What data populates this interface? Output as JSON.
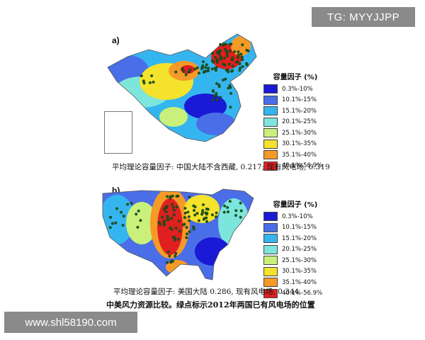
{
  "watermarks": {
    "top_right": "TG: MYYJJPP",
    "bottom_left": "www.shl58190.com"
  },
  "panel_a": {
    "label": "a)",
    "legend_title": "容量因子 (%)",
    "caption": "平均理论容量因子: 中国大陆不含西藏, 0.217; 现有风电场, 0.319"
  },
  "panel_b": {
    "label": "b)",
    "legend_title": "容量因子 (%)",
    "caption": "平均理论容量因子: 美国大陆 0.286, 现有风电场, 0.344"
  },
  "footer_caption": "中美风力资源比较。绿点标示2012年两国已有风电场的位置",
  "legend_items": [
    {
      "label": "0.3%-10%",
      "color": "#1a1ad6"
    },
    {
      "label": "10.1%-15%",
      "color": "#4a6ee8"
    },
    {
      "label": "15.1%-20%",
      "color": "#35b5ef"
    },
    {
      "label": "20.1%-25%",
      "color": "#7de6dc"
    },
    {
      "label": "25.1%-30%",
      "color": "#c9f07a"
    },
    {
      "label": "30.1%-35%",
      "color": "#f4e22c"
    },
    {
      "label": "35.1%-40%",
      "color": "#f59a27"
    },
    {
      "label": "40.1%-56.9%",
      "color": "#e02020"
    }
  ],
  "wind_farm_color": "#1f5a1f"
}
